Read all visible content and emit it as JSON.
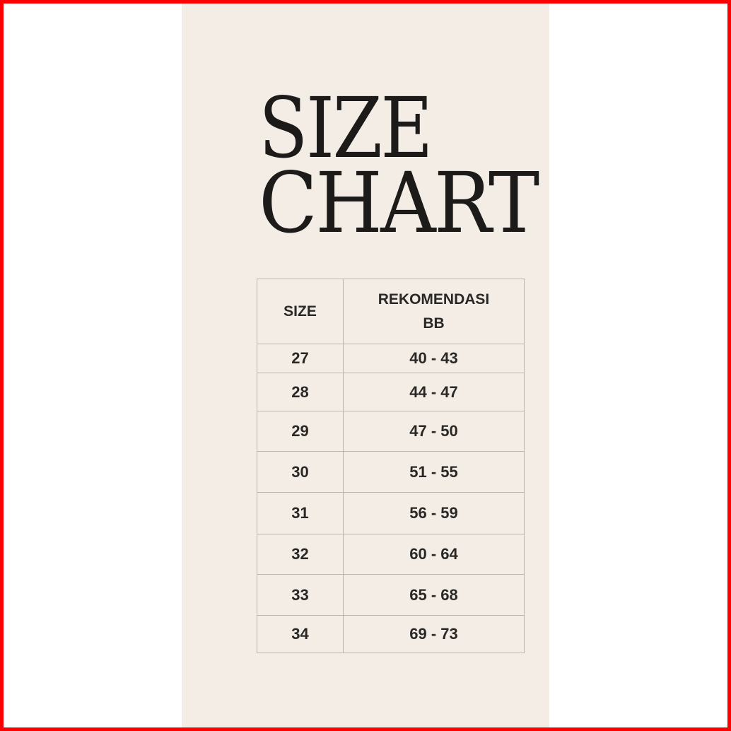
{
  "title": {
    "line1": "SIZE",
    "line2": "CHART"
  },
  "table": {
    "headers": [
      "SIZE",
      "REKOMENDASI",
      "BB"
    ],
    "rows": [
      {
        "size": "27",
        "bb": "40 - 43"
      },
      {
        "size": "28",
        "bb": "44 - 47"
      },
      {
        "size": "29",
        "bb": "47 - 50"
      },
      {
        "size": "30",
        "bb": "51 - 55"
      },
      {
        "size": "31",
        "bb": "56 - 59"
      },
      {
        "size": "32",
        "bb": "60 - 64"
      },
      {
        "size": "33",
        "bb": "65 - 68"
      },
      {
        "size": "34",
        "bb": "69 - 73"
      }
    ]
  },
  "colors": {
    "border": "#ff0000",
    "panel": "#f3ede6",
    "text": "#1d1b19"
  }
}
